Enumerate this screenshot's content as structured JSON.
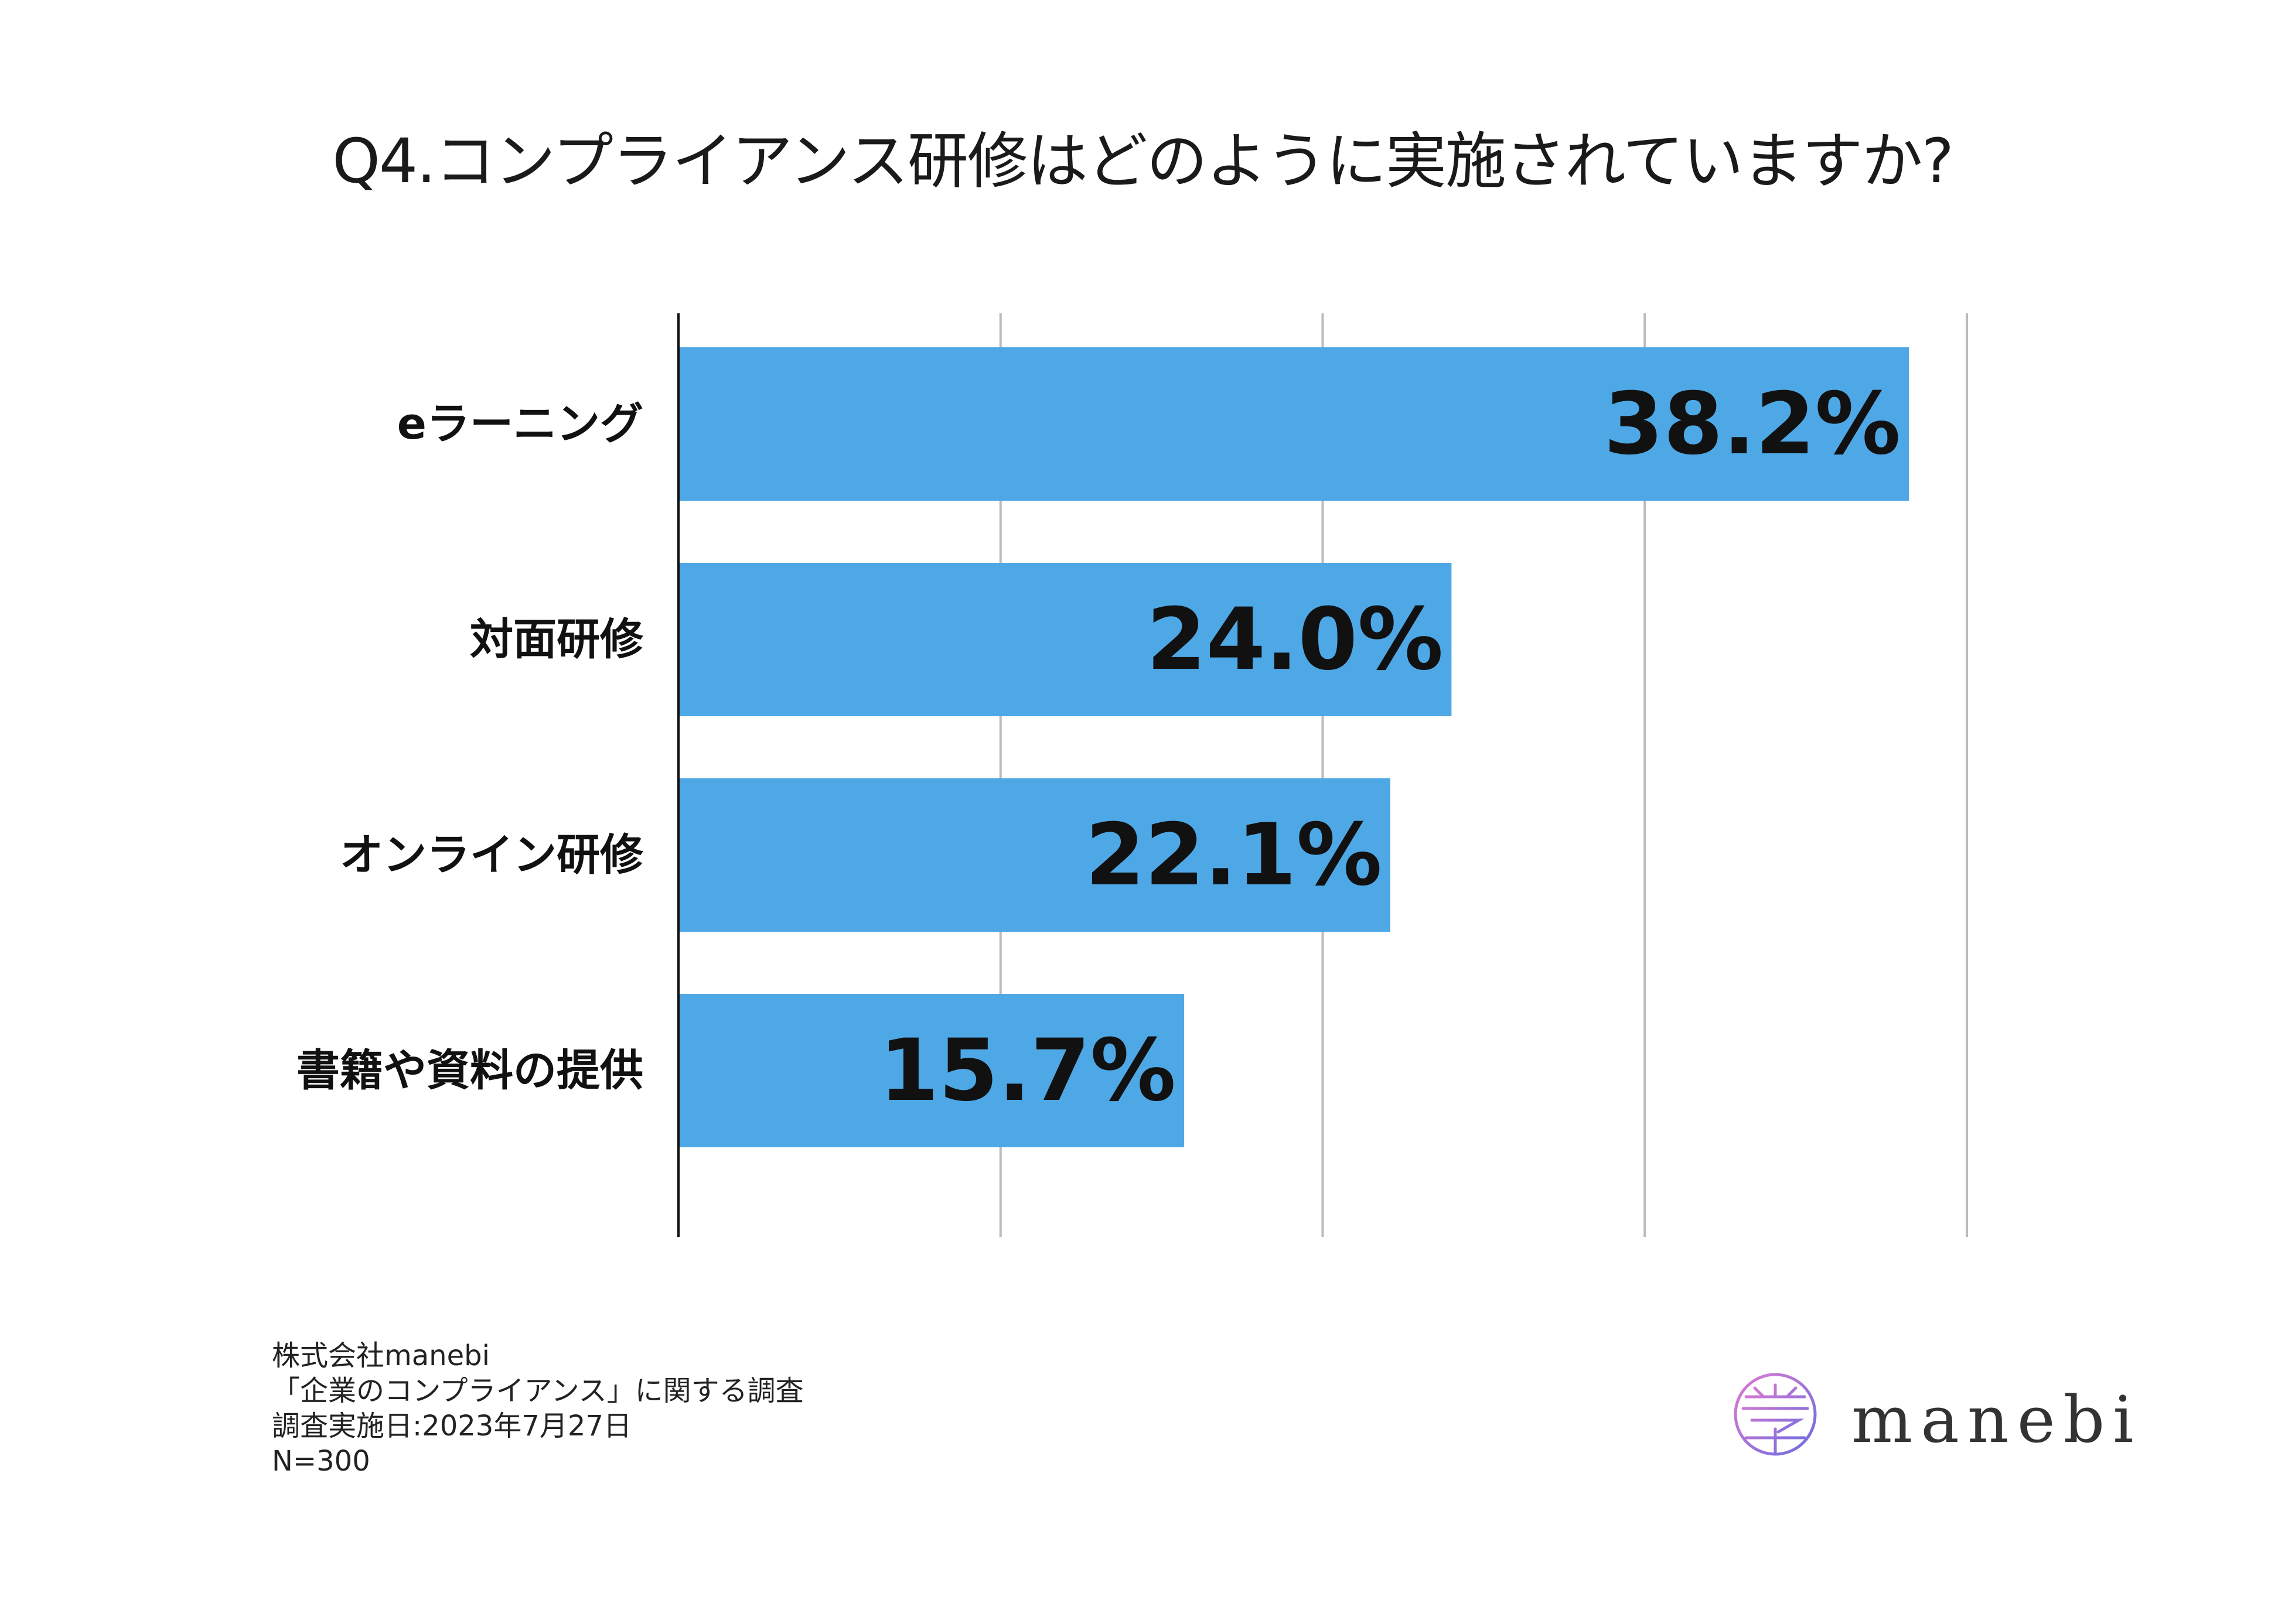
{
  "title": "Q4.コンプライアンス研修はどのように実施されていますか?",
  "chart_data": {
    "type": "bar",
    "orientation": "horizontal",
    "title": "Q4.コンプライアンス研修はどのように実施されていますか?",
    "categories": [
      "eラーニング",
      "対面研修",
      "オンライン研修",
      "書籍や資料の提供"
    ],
    "values": [
      38.2,
      24.0,
      22.1,
      15.7
    ],
    "value_labels": [
      "38.2%",
      "24.0%",
      "22.1%",
      "15.7%"
    ],
    "xlim": [
      0,
      40
    ],
    "grid": true,
    "gridline_values": [
      10,
      20,
      30,
      40
    ],
    "bar_color": "#4EA8E6",
    "xlabel": "",
    "ylabel": ""
  },
  "footer": {
    "lines": [
      "株式会社manebi",
      "「企業のコンプライアンス」に関する調査",
      "調査実施日:2023年7月27日",
      "N=300"
    ]
  },
  "logo": {
    "text": "manebi",
    "icon": "manebi-logo-icon"
  },
  "colors": {
    "bar": "#4EA8E6",
    "gridline": "#bbbbbb",
    "axis": "#111111",
    "text": "#1a1a1a"
  }
}
